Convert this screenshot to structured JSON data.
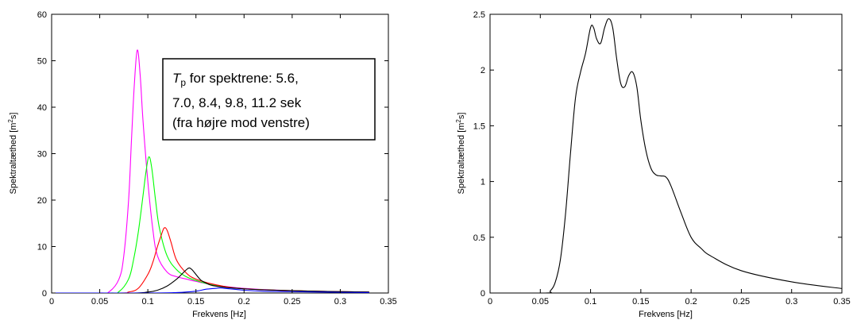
{
  "chart_data": [
    {
      "type": "line",
      "xlabel": "Frekvens [Hz]",
      "ylabel": "Spektraltæthed [m",
      "ylabel_sup": "2",
      "ylabel_end": "s]",
      "xlim": [
        0,
        0.35
      ],
      "ylim": [
        0,
        60
      ],
      "xticks": [
        "0",
        "0.05",
        "0.1",
        "0.15",
        "0.2",
        "0.25",
        "0.3",
        "0.35"
      ],
      "yticks": [
        "0",
        "10",
        "20",
        "30",
        "40",
        "50",
        "60"
      ],
      "grid": false,
      "annotation": {
        "line1_italic": "T",
        "line1_sub": "p",
        "line1_rest": " for spektrene: 5.6,",
        "line2": "7.0, 8.4, 9.8, 11.2 sek",
        "line3": "(fra højre mod venstre)"
      },
      "series": [
        {
          "color": "#ff00ff",
          "x": [
            0.0,
            0.05,
            0.06,
            0.07,
            0.075,
            0.08,
            0.083,
            0.086,
            0.089,
            0.092,
            0.095,
            0.1,
            0.105,
            0.11,
            0.12,
            0.13,
            0.14,
            0.15,
            0.17,
            0.2,
            0.25,
            0.3,
            0.33
          ],
          "y": [
            0,
            0,
            0.3,
            3,
            8,
            20,
            33,
            45,
            52.3,
            47,
            37,
            24,
            14,
            8,
            4.5,
            3.5,
            3,
            2.5,
            1.7,
            1.0,
            0.5,
            0.3,
            0.2
          ]
        },
        {
          "color": "#00ff00",
          "x": [
            0.0,
            0.06,
            0.07,
            0.08,
            0.085,
            0.09,
            0.095,
            0.098,
            0.101,
            0.104,
            0.108,
            0.112,
            0.12,
            0.13,
            0.14,
            0.15,
            0.17,
            0.2,
            0.25,
            0.3,
            0.33
          ],
          "y": [
            0,
            0,
            0.3,
            3,
            7,
            13,
            21,
            26,
            29.3,
            27,
            20,
            14,
            8,
            5,
            3.5,
            2.7,
            1.6,
            0.9,
            0.5,
            0.3,
            0.2
          ]
        },
        {
          "color": "#ff0000",
          "x": [
            0.0,
            0.07,
            0.08,
            0.09,
            0.1,
            0.105,
            0.11,
            0.114,
            0.117,
            0.12,
            0.124,
            0.13,
            0.14,
            0.15,
            0.17,
            0.2,
            0.25,
            0.3,
            0.33
          ],
          "y": [
            0,
            0,
            0.2,
            1,
            4,
            6.5,
            10,
            12.5,
            14,
            13.5,
            11,
            7,
            4.3,
            3,
            1.8,
            0.9,
            0.5,
            0.3,
            0.2
          ]
        },
        {
          "color": "#000000",
          "x": [
            0.0,
            0.08,
            0.1,
            0.11,
            0.12,
            0.13,
            0.135,
            0.14,
            0.143,
            0.146,
            0.15,
            0.155,
            0.16,
            0.17,
            0.2,
            0.25,
            0.3,
            0.33
          ],
          "y": [
            0,
            0,
            0.2,
            0.6,
            1.5,
            3,
            4,
            5,
            5.4,
            5.0,
            4.0,
            2.8,
            2.2,
            1.5,
            0.9,
            0.5,
            0.3,
            0.2
          ]
        },
        {
          "color": "#0000ff",
          "x": [
            0.0,
            0.1,
            0.13,
            0.15,
            0.16,
            0.17,
            0.175,
            0.18,
            0.19,
            0.2,
            0.22,
            0.25,
            0.3,
            0.33
          ],
          "y": [
            0,
            0,
            0.1,
            0.4,
            0.8,
            1.0,
            1.1,
            1.0,
            0.8,
            0.6,
            0.4,
            0.3,
            0.15,
            0.1
          ]
        }
      ]
    },
    {
      "type": "line",
      "xlabel": "Frekvens [Hz]",
      "ylabel": "Spektraltæthed [m",
      "ylabel_sup": "2",
      "ylabel_end": "s]",
      "xlim": [
        0,
        0.35
      ],
      "ylim": [
        0,
        2.5
      ],
      "xticks": [
        "0",
        "0.05",
        "0.1",
        "0.15",
        "0.2",
        "0.25",
        "0.3",
        "0.35"
      ],
      "yticks": [
        "0",
        "0.5",
        "1",
        "1.5",
        "2",
        "2.5"
      ],
      "grid": false,
      "series": [
        {
          "color": "#000000",
          "x": [
            0.0,
            0.055,
            0.06,
            0.065,
            0.07,
            0.075,
            0.08,
            0.085,
            0.09,
            0.095,
            0.1,
            0.103,
            0.106,
            0.11,
            0.114,
            0.118,
            0.122,
            0.126,
            0.13,
            0.134,
            0.138,
            0.142,
            0.146,
            0.15,
            0.155,
            0.16,
            0.165,
            0.17,
            0.175,
            0.18,
            0.19,
            0.2,
            0.21,
            0.22,
            0.25,
            0.3,
            0.35
          ],
          "y": [
            0,
            0,
            0.02,
            0.1,
            0.3,
            0.7,
            1.25,
            1.75,
            1.98,
            2.15,
            2.38,
            2.38,
            2.28,
            2.24,
            2.38,
            2.46,
            2.38,
            2.1,
            1.88,
            1.85,
            1.95,
            1.98,
            1.85,
            1.55,
            1.28,
            1.12,
            1.06,
            1.05,
            1.04,
            0.96,
            0.72,
            0.5,
            0.4,
            0.33,
            0.2,
            0.1,
            0.04
          ]
        }
      ]
    }
  ]
}
